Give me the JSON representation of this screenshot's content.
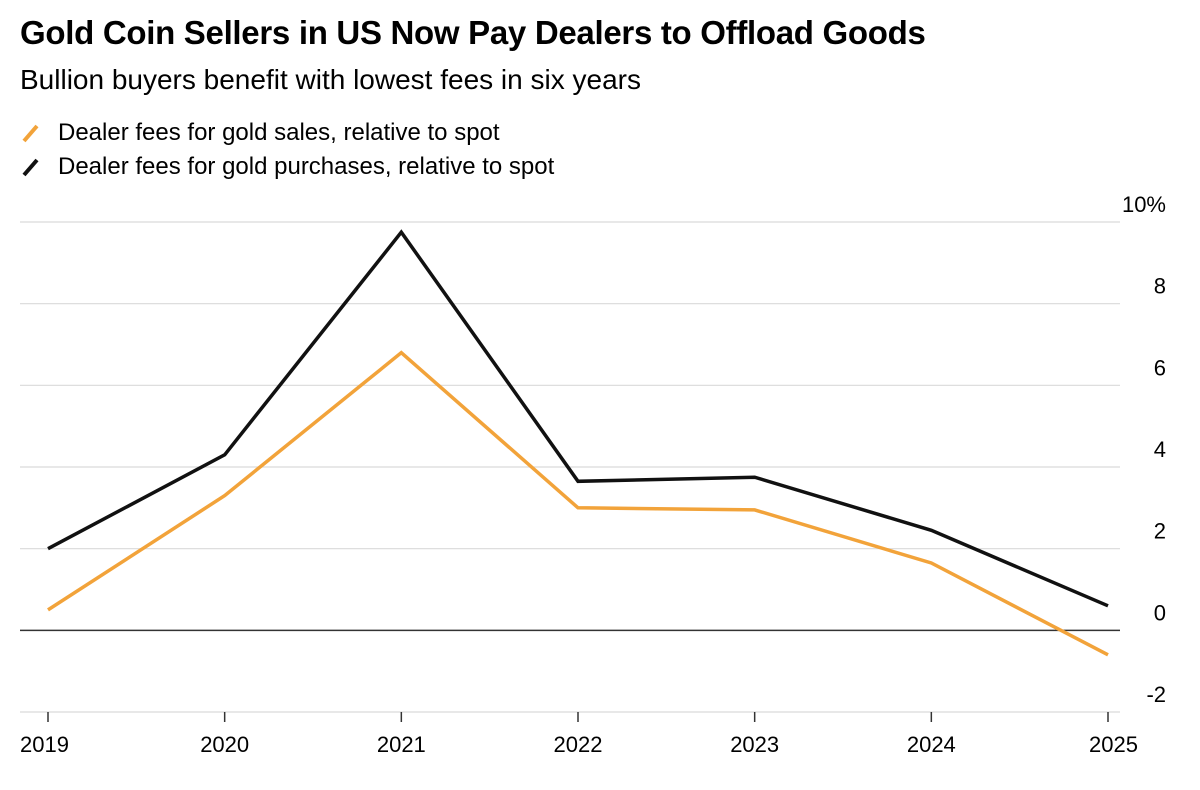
{
  "title": "Gold Coin Sellers in US Now Pay Dealers to Offload Goods",
  "subtitle": "Bullion buyers benefit with lowest fees in six years",
  "colors": {
    "sales": "#f2a33a",
    "purchases": "#111111",
    "grid": "#d9d9d9",
    "zero": "#333333"
  },
  "chart_data": {
    "type": "line",
    "x": [
      "2019",
      "2020",
      "2021",
      "2022",
      "2023",
      "2024",
      "2025"
    ],
    "series": [
      {
        "name": "Dealer fees for gold sales, relative to spot",
        "key": "sales",
        "values": [
          0.5,
          3.3,
          6.8,
          3.0,
          2.95,
          1.65,
          -0.6
        ]
      },
      {
        "name": "Dealer fees for gold purchases, relative to spot",
        "key": "purchases",
        "values": [
          2.0,
          4.3,
          9.75,
          3.65,
          3.75,
          2.45,
          0.6
        ]
      }
    ],
    "yticks": [
      {
        "value": 10,
        "label": "10%"
      },
      {
        "value": 8,
        "label": "8"
      },
      {
        "value": 6,
        "label": "6"
      },
      {
        "value": 4,
        "label": "4"
      },
      {
        "value": 2,
        "label": "2"
      },
      {
        "value": 0,
        "label": "0"
      },
      {
        "value": -2,
        "label": "-2"
      }
    ],
    "ylim": [
      -2,
      10
    ],
    "grid": true,
    "legend_position": "top-left"
  }
}
